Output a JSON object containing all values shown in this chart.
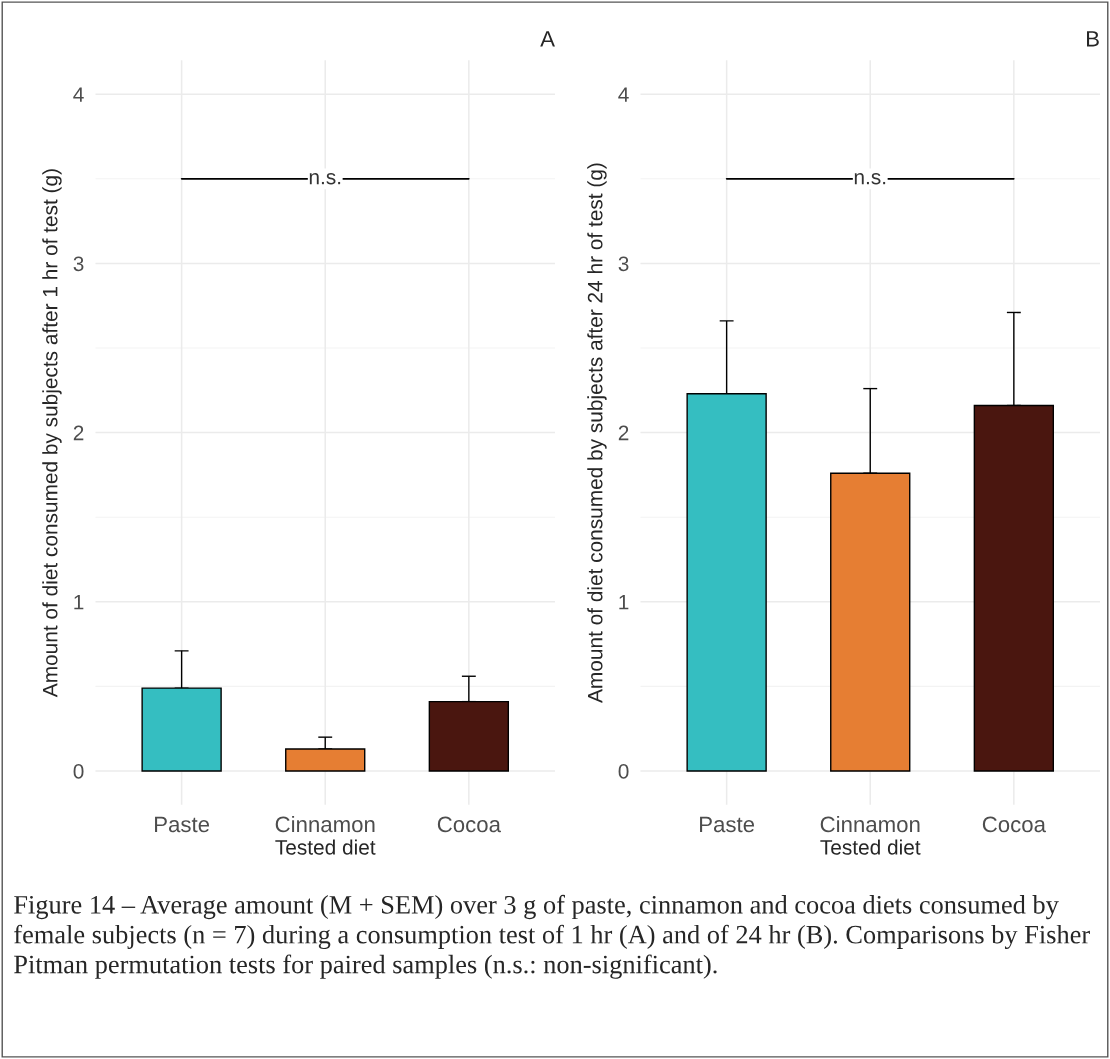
{
  "chart_data": [
    {
      "type": "bar",
      "title": "A",
      "xlabel": "Tested diet",
      "ylabel": "Amount of diet consumed by subjects after 1 hr of test (g)",
      "categories": [
        "Paste",
        "Cinnamon",
        "Cocoa"
      ],
      "values": [
        0.49,
        0.13,
        0.41
      ],
      "colors": [
        "#35bec1",
        "#e67e33",
        "#4a160f"
      ],
      "errors": [
        [
          0.49,
          0.71
        ],
        [
          0.13,
          0.2
        ],
        [
          0.41,
          0.56
        ]
      ],
      "ylim": [
        -0.2,
        4.2
      ],
      "yticks": [
        0,
        1,
        2,
        3,
        4
      ],
      "grid": true,
      "annotations": [
        {
          "text": "n.s.",
          "x": "Cinnamon",
          "y": 3.5
        }
      ]
    },
    {
      "type": "bar",
      "title": "B",
      "xlabel": "Tested diet",
      "ylabel": "Amount of diet consumed by subjects after 24 hr of test (g)",
      "categories": [
        "Paste",
        "Cinnamon",
        "Cocoa"
      ],
      "values": [
        2.23,
        1.76,
        2.16
      ],
      "colors": [
        "#35bec1",
        "#e67e33",
        "#4a160f"
      ],
      "errors": [
        [
          2.23,
          2.66
        ],
        [
          1.76,
          2.26
        ],
        [
          2.16,
          2.71
        ]
      ],
      "ylim": [
        -0.2,
        4.2
      ],
      "yticks": [
        0,
        1,
        2,
        3,
        4
      ],
      "grid": true,
      "annotations": [
        {
          "text": "n.s.",
          "x": "Cinnamon",
          "y": 3.5
        },
        "Figure 14 – Average amount (M + SEM) over 3 g of paste, cinnamon and cocoa diets consumed by female subjects (n = 7) during a consumption test of 1 hr (A) and of 24 hr (B). Comparisons by Fisher Pitman permutation tests for paired samples (n.s.: non-significant)."
      ]
    }
  ]
}
